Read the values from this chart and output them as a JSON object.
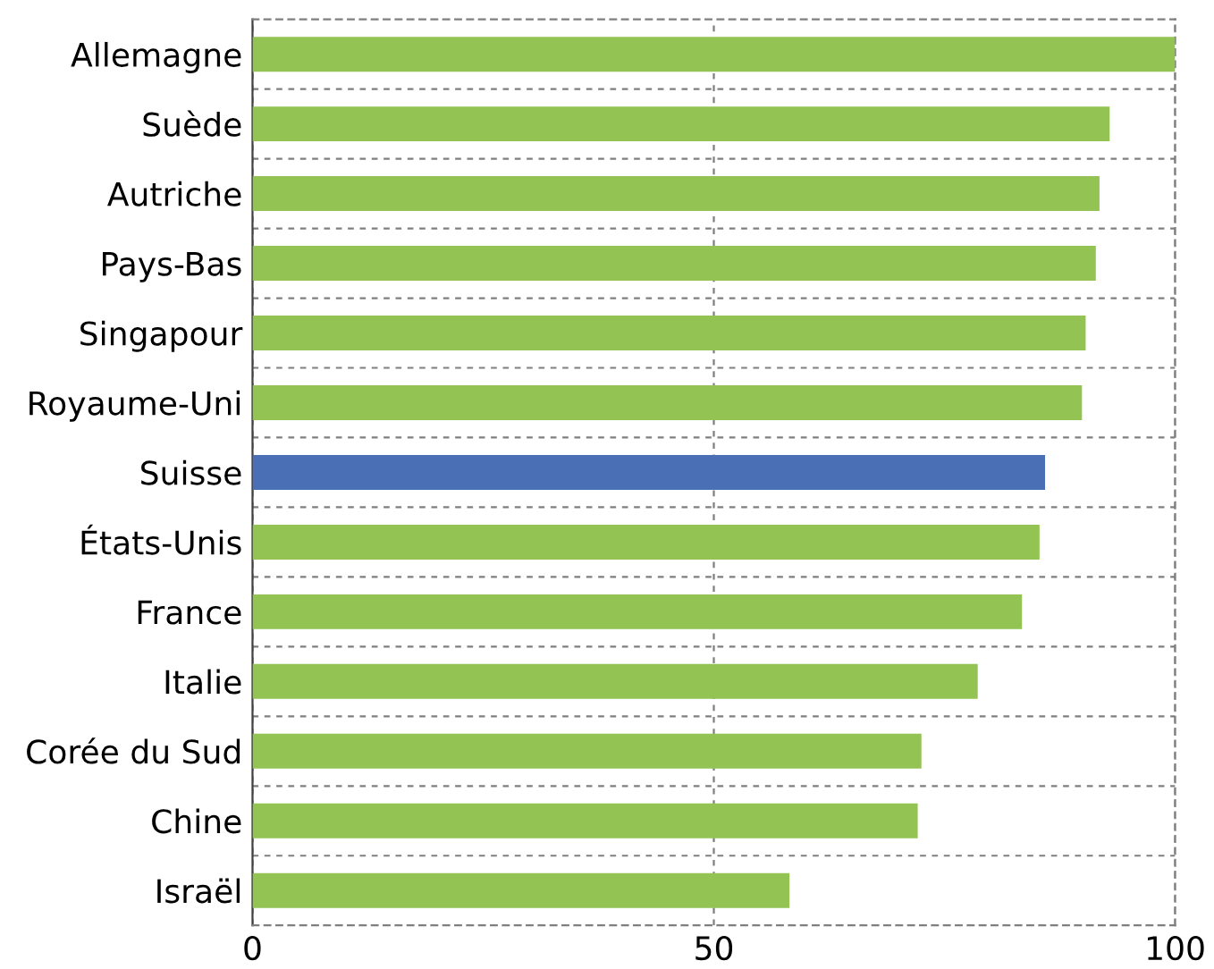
{
  "chart_data": {
    "type": "bar",
    "orientation": "horizontal",
    "categories": [
      "Allemagne",
      "Suède",
      "Autriche",
      "Pays-Bas",
      "Singapour",
      "Royaume-Uni",
      "Suisse",
      "États-Unis",
      "France",
      "Italie",
      "Corée du Sud",
      "Chine",
      "Israël"
    ],
    "values": [
      100,
      92.9,
      91.8,
      91.4,
      90.3,
      89.9,
      85.9,
      85.3,
      83.4,
      78.6,
      72.5,
      72.1,
      58.2
    ],
    "colors": [
      "#92c353",
      "#92c353",
      "#92c353",
      "#92c353",
      "#92c353",
      "#92c353",
      "#4a6fb5",
      "#92c353",
      "#92c353",
      "#92c353",
      "#92c353",
      "#92c353",
      "#92c353"
    ],
    "xlim": [
      0,
      100
    ],
    "xticks": [
      0,
      50,
      100
    ],
    "grid": true
  }
}
